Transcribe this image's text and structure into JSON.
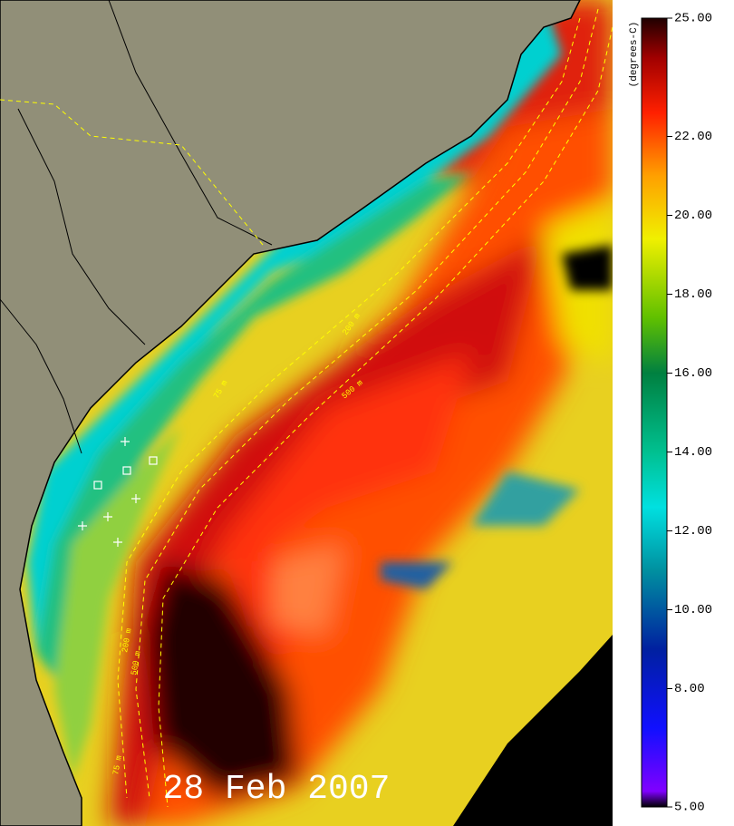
{
  "map": {
    "date_label": "28 Feb 2007",
    "isobath_labels": [
      "75 m",
      "200 m",
      "500 m",
      "75 m",
      "200 m",
      "500 m"
    ]
  },
  "colorbar": {
    "title": "(degrees-C)",
    "ylim": [
      5,
      25
    ],
    "yticks": [
      {
        "value": 5,
        "label": "5.00"
      },
      {
        "value": 8,
        "label": "8.00"
      },
      {
        "value": 10,
        "label": "10.00"
      },
      {
        "value": 12,
        "label": "12.00"
      },
      {
        "value": 14,
        "label": "14.00"
      },
      {
        "value": 16,
        "label": "16.00"
      },
      {
        "value": 18,
        "label": "18.00"
      },
      {
        "value": 20,
        "label": "20.00"
      },
      {
        "value": 22,
        "label": "22.00"
      },
      {
        "value": 25,
        "label": "25.00"
      }
    ]
  }
}
